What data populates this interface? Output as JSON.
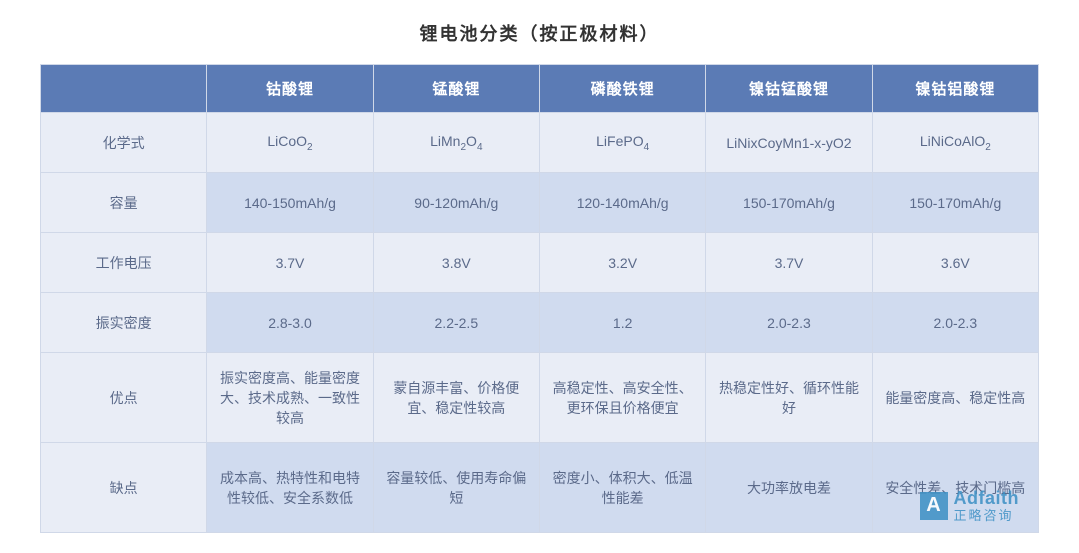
{
  "title": "锂电池分类（按正极材料）",
  "columns": [
    "",
    "钴酸锂",
    "锰酸锂",
    "磷酸铁锂",
    "镍钴锰酸锂",
    "镍钴铝酸锂"
  ],
  "rows": [
    {
      "label": "化学式",
      "cells_html": [
        "LiCoO<sub>2</sub>",
        "LiMn<sub>2</sub>O<sub>4</sub>",
        "LiFePO<sub>4</sub>",
        "LiNixCoyMn1-x-yO2",
        "LiNiCoAlO<sub>2</sub>"
      ]
    },
    {
      "label": "容量",
      "cells": [
        "140-150mAh/g",
        "90-120mAh/g",
        "120-140mAh/g",
        "150-170mAh/g",
        "150-170mAh/g"
      ]
    },
    {
      "label": "工作电压",
      "cells": [
        "3.7V",
        "3.8V",
        "3.2V",
        "3.7V",
        "3.6V"
      ]
    },
    {
      "label": "振实密度",
      "cells": [
        "2.8-3.0",
        "2.2-2.5",
        "1.2",
        "2.0-2.3",
        "2.0-2.3"
      ]
    },
    {
      "label": "优点",
      "cells": [
        "振实密度高、能量密度大、技术成熟、一致性较高",
        "蒙自源丰富、价格便宜、稳定性较高",
        "高稳定性、高安全性、更环保且价格便宜",
        "热稳定性好、循环性能好",
        "能量密度高、稳定性高"
      ]
    },
    {
      "label": "缺点",
      "cells": [
        "成本高、热特性和电特性较低、安全系数低",
        "容量较低、使用寿命偏短",
        "密度小、体积大、低温性能差",
        "大功率放电差",
        "安全性差、技术门槛高"
      ]
    }
  ],
  "watermark": {
    "icon": "A",
    "main": "Adfaith",
    "sub": "正略咨询"
  },
  "colors": {
    "header_bg": "#5b7bb5",
    "header_text": "#ffffff",
    "row_odd_bg": "#e9edf6",
    "row_even_bg": "#d0dbef",
    "border": "#d0d8e8",
    "text": "#5b6a8a",
    "watermark": "#3b8fc4"
  }
}
